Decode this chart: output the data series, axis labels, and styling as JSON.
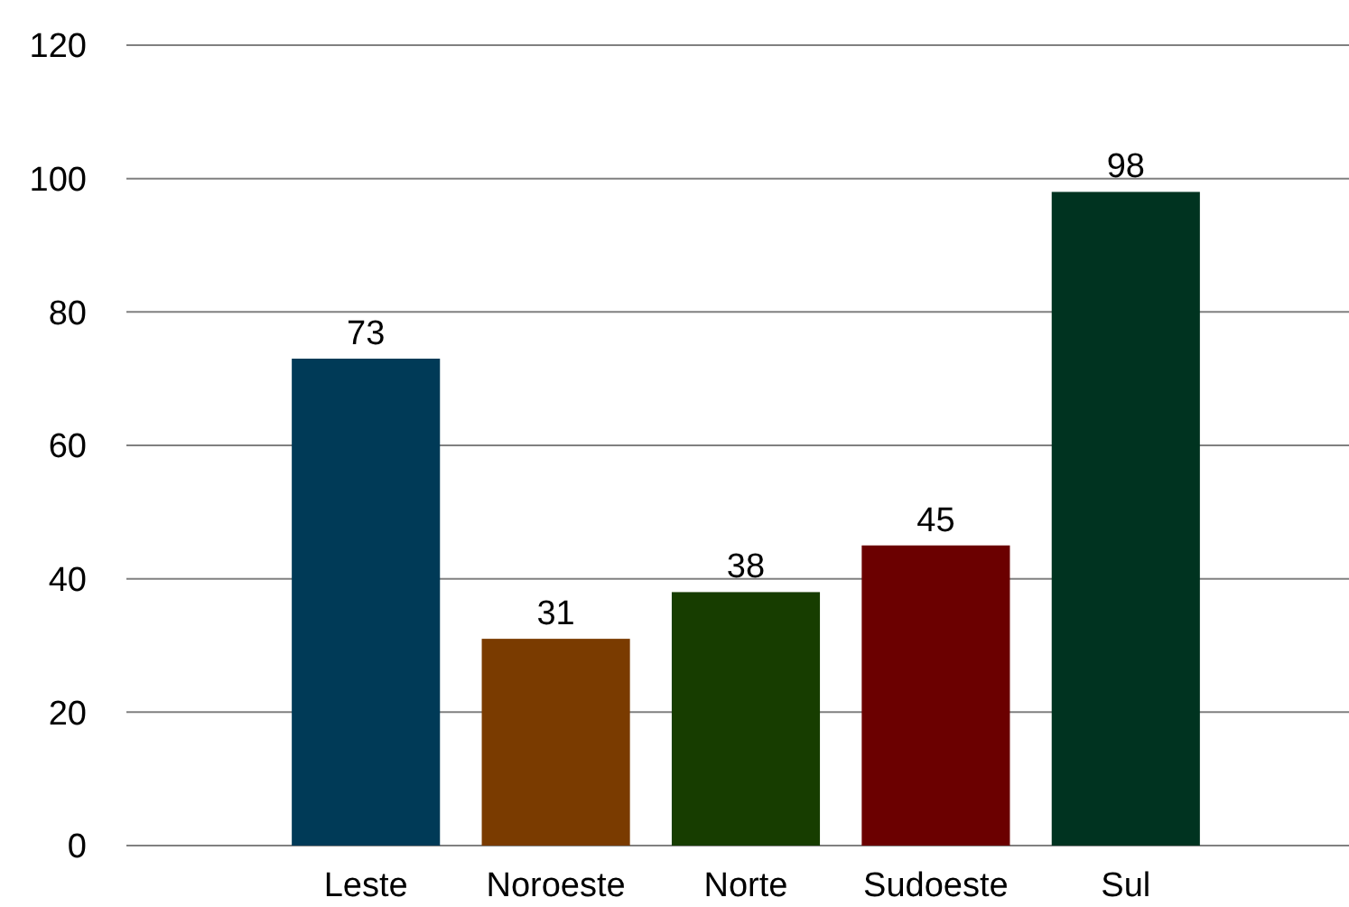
{
  "chart_data": {
    "type": "bar",
    "categories": [
      "Leste",
      "Noroeste",
      "Norte",
      "Sudoeste",
      "Sul"
    ],
    "values": [
      73,
      31,
      38,
      45,
      98
    ],
    "colors": [
      "#003a57",
      "#7a3b00",
      "#173d00",
      "#6b0000",
      "#003320"
    ],
    "ylim": [
      0,
      120
    ],
    "yticks": [
      0,
      20,
      40,
      60,
      80,
      100,
      120
    ],
    "grid": "y",
    "data_labels": true
  }
}
